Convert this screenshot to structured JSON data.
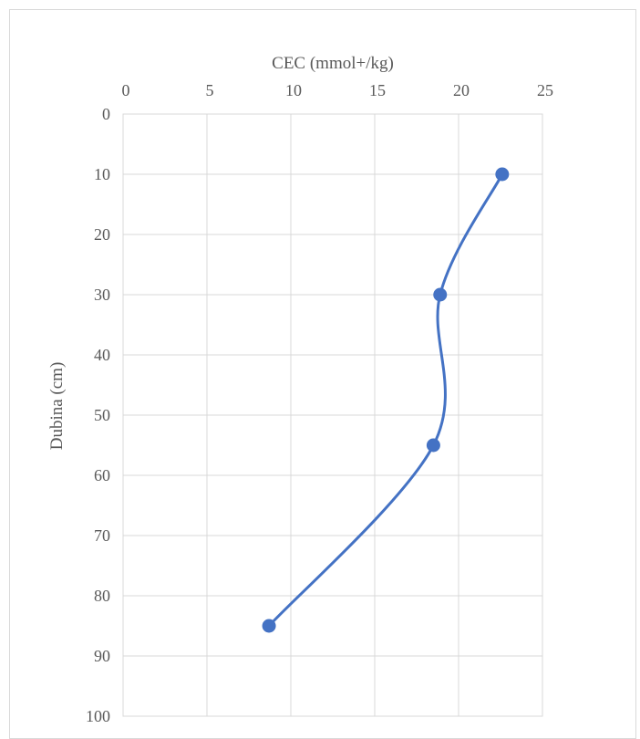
{
  "chart_data": {
    "type": "scatter",
    "xlabel": "CEC (mmol+/kg)",
    "ylabel": "Dubina (cm)",
    "xlim": [
      0,
      25
    ],
    "ylim": [
      0,
      100
    ],
    "x_ticks": [
      0,
      5,
      10,
      15,
      20,
      25
    ],
    "y_ticks": [
      0,
      10,
      20,
      30,
      40,
      50,
      60,
      70,
      80,
      90,
      100
    ],
    "x_axis_position": "top",
    "y_axis_reversed": true,
    "grid": true,
    "smooth_line": true,
    "series": [
      {
        "color": "#4472c4",
        "points": [
          {
            "x": 22.6,
            "y": 10
          },
          {
            "x": 18.9,
            "y": 30
          },
          {
            "x": 18.5,
            "y": 55
          },
          {
            "x": 8.7,
            "y": 85
          }
        ]
      }
    ]
  }
}
